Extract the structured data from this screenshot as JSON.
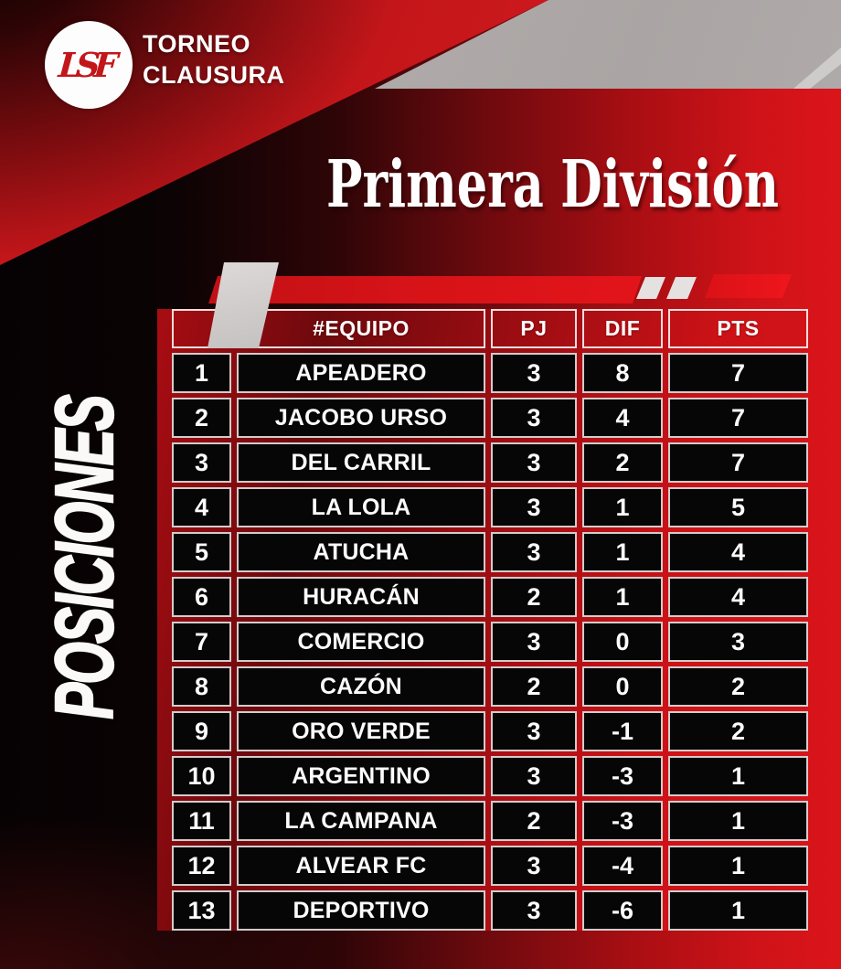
{
  "brand": {
    "logo_monogram": "LSF",
    "title_line1": "TORNEO",
    "title_line2": "CLAUSURA"
  },
  "page_title": "Primera División",
  "side_label": "POSICIONES",
  "standings": {
    "headers": {
      "rank": "",
      "team": "#EQUIPO",
      "played": "PJ",
      "diff": "DIF",
      "points": "PTS"
    },
    "rows": [
      {
        "pos": "1",
        "team": "APEADERO",
        "pj": "3",
        "dif": "8",
        "pts": "7"
      },
      {
        "pos": "2",
        "team": "JACOBO URSO",
        "pj": "3",
        "dif": "4",
        "pts": "7"
      },
      {
        "pos": "3",
        "team": "DEL CARRIL",
        "pj": "3",
        "dif": "2",
        "pts": "7"
      },
      {
        "pos": "4",
        "team": "LA LOLA",
        "pj": "3",
        "dif": "1",
        "pts": "5"
      },
      {
        "pos": "5",
        "team": "ATUCHA",
        "pj": "3",
        "dif": "1",
        "pts": "4"
      },
      {
        "pos": "6",
        "team": "HURACÁN",
        "pj": "2",
        "dif": "1",
        "pts": "4"
      },
      {
        "pos": "7",
        "team": "COMERCIO",
        "pj": "3",
        "dif": "0",
        "pts": "3"
      },
      {
        "pos": "8",
        "team": "CAZÓN",
        "pj": "2",
        "dif": "0",
        "pts": "2"
      },
      {
        "pos": "9",
        "team": "ORO VERDE",
        "pj": "3",
        "dif": "-1",
        "pts": "2"
      },
      {
        "pos": "10",
        "team": "ARGENTINO",
        "pj": "3",
        "dif": "-3",
        "pts": "1"
      },
      {
        "pos": "11",
        "team": "LA CAMPANA",
        "pj": "2",
        "dif": "-3",
        "pts": "1"
      },
      {
        "pos": "12",
        "team": "ALVEAR FC",
        "pj": "3",
        "dif": "-4",
        "pts": "1"
      },
      {
        "pos": "13",
        "team": "DEPORTIVO",
        "pj": "3",
        "dif": "-6",
        "pts": "1"
      }
    ]
  },
  "chart_data": {
    "type": "table",
    "title": "Primera División — Torneo Clausura — Posiciones",
    "columns": [
      "#",
      "#EQUIPO",
      "PJ",
      "DIF",
      "PTS"
    ],
    "rows": [
      [
        1,
        "APEADERO",
        3,
        8,
        7
      ],
      [
        2,
        "JACOBO URSO",
        3,
        4,
        7
      ],
      [
        3,
        "DEL CARRIL",
        3,
        2,
        7
      ],
      [
        4,
        "LA LOLA",
        3,
        1,
        5
      ],
      [
        5,
        "ATUCHA",
        3,
        1,
        4
      ],
      [
        6,
        "HURACÁN",
        2,
        1,
        4
      ],
      [
        7,
        "COMERCIO",
        3,
        0,
        3
      ],
      [
        8,
        "CAZÓN",
        2,
        0,
        2
      ],
      [
        9,
        "ORO VERDE",
        3,
        -1,
        2
      ],
      [
        10,
        "ARGENTINO",
        3,
        -3,
        1
      ],
      [
        11,
        "LA CAMPANA",
        2,
        -3,
        1
      ],
      [
        12,
        "ALVEAR FC",
        3,
        -4,
        1
      ],
      [
        13,
        "DEPORTIVO",
        3,
        -6,
        1
      ]
    ]
  },
  "colors": {
    "accent_red": "#d41419",
    "dark_red": "#6e090d",
    "cell_black": "#070606",
    "cell_border": "#d2cccb",
    "photo_gray": "#aaa5a4",
    "text_white": "#ffffff"
  }
}
